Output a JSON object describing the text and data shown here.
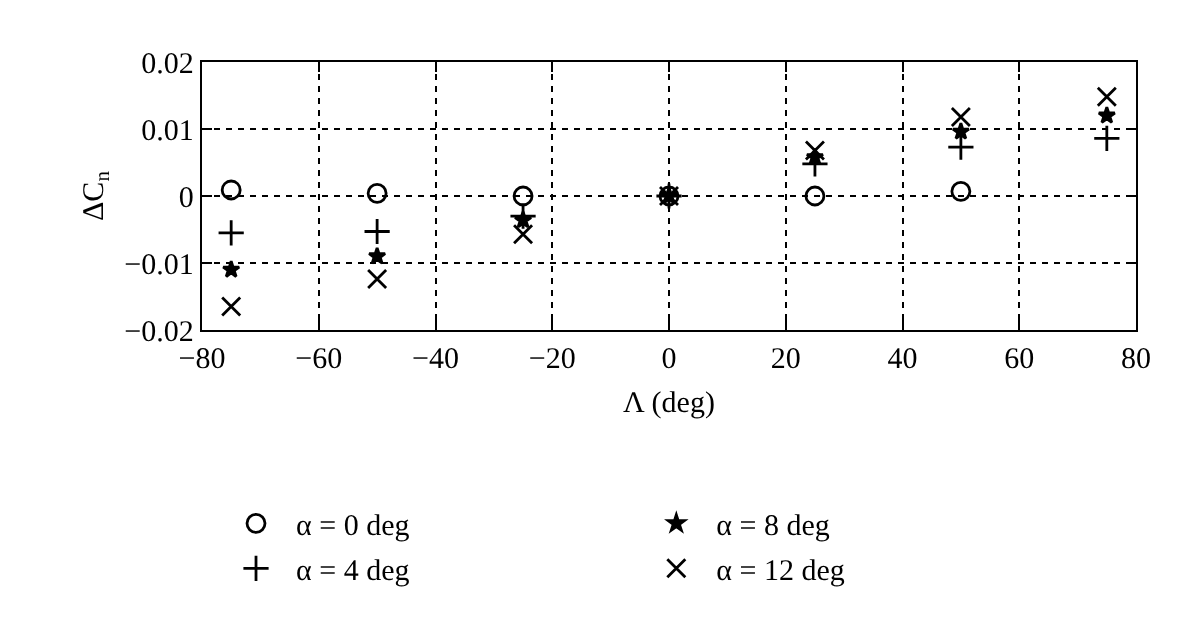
{
  "chart_data": {
    "type": "scatter",
    "xlabel": "Λ (deg)",
    "ylabel": "ΔC$_{n}$",
    "x": [
      -75,
      -50,
      -25,
      0,
      25,
      50,
      75
    ],
    "series": [
      {
        "name": "α = 0 deg",
        "color": "#000000",
        "marker": "circle",
        "values": [
          0.0009,
          0.0004,
          0.0,
          0.0,
          0.0,
          0.0007,
          null
        ]
      },
      {
        "name": "α = 4 deg",
        "color": "#000000",
        "marker": "cross",
        "values": [
          -0.0055,
          -0.0053,
          -0.003,
          0.0,
          0.0048,
          0.0073,
          0.0086
        ]
      },
      {
        "name": "α = 8 deg",
        "color": "#000000",
        "marker": "star",
        "values": [
          -0.011,
          -0.009,
          -0.0036,
          0.0,
          0.0058,
          0.0096,
          0.012
        ]
      },
      {
        "name": "α = 12 deg",
        "color": "#000000",
        "marker": "x",
        "values": [
          -0.0165,
          -0.0124,
          -0.0057,
          0.0,
          0.0068,
          0.0118,
          0.0148
        ]
      }
    ],
    "xlim": [
      -80,
      80
    ],
    "xticks": [
      -80,
      -60,
      -40,
      -20,
      0,
      20,
      40,
      60,
      80
    ],
    "ylim": [
      -0.02,
      0.02
    ],
    "yticks": [
      -0.02,
      -0.01,
      0,
      0.01,
      0.02
    ],
    "grid": true,
    "legend": "bottom"
  }
}
